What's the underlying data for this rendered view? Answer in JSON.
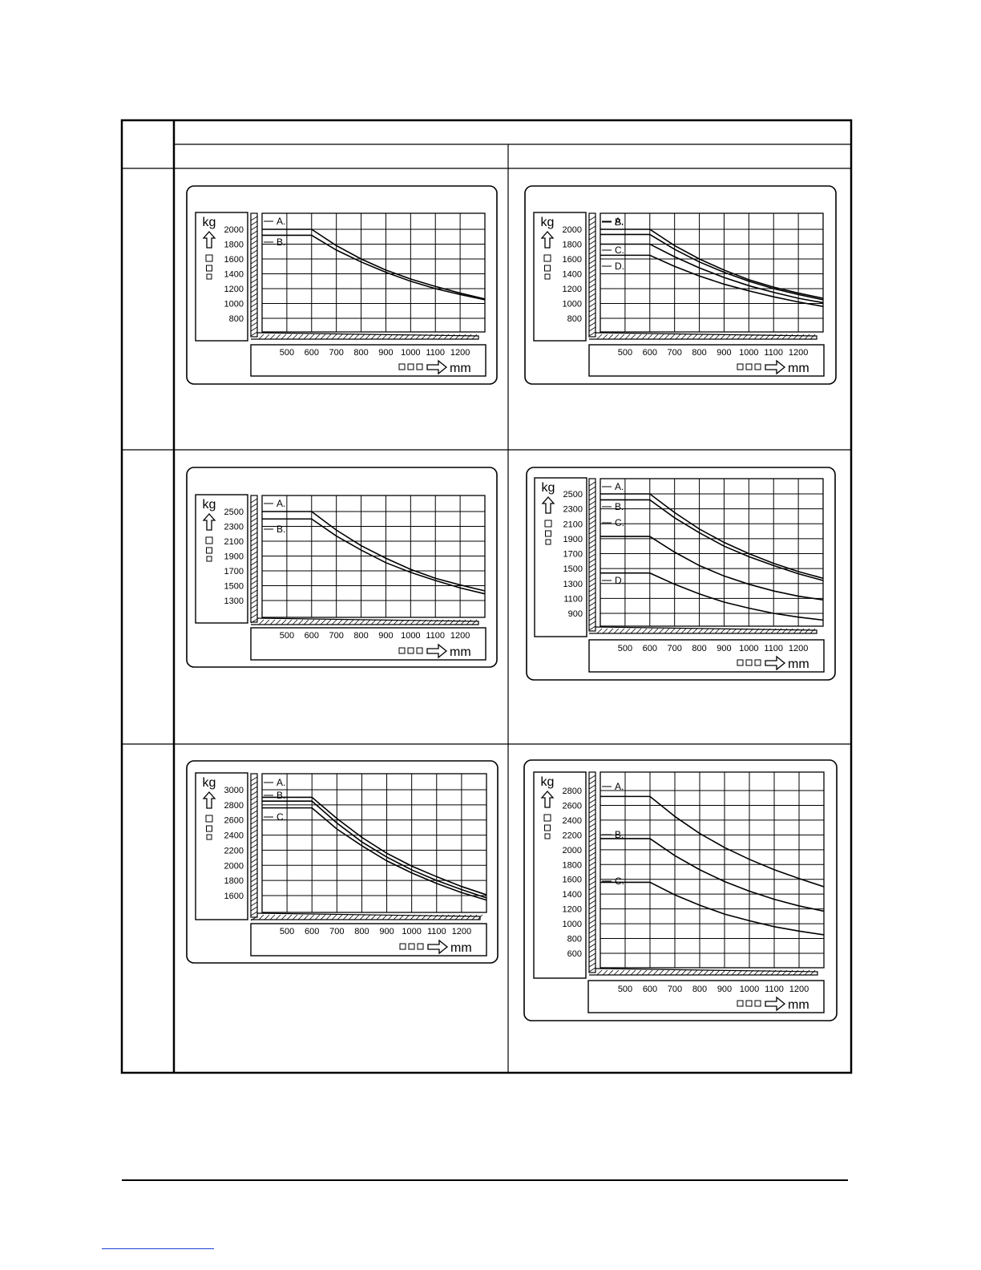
{
  "page": {
    "header_row_1": "",
    "header_left": "",
    "header_right": "",
    "row_labels": [
      "",
      "",
      ""
    ]
  },
  "chart_data": [
    {
      "type": "line",
      "ylabel": "kg",
      "xlabel": "mm",
      "x_ticks": [
        500,
        600,
        700,
        800,
        900,
        1000,
        1100,
        1200
      ],
      "y_ticks": [
        2000,
        1800,
        1600,
        1400,
        1200,
        1000,
        800
      ],
      "xlim": [
        400,
        1300
      ],
      "ylim": [
        650,
        2200
      ],
      "series": [
        {
          "name": "A.",
          "x": [
            400,
            600,
            700,
            800,
            900,
            1000,
            1100,
            1200,
            1300
          ],
          "y": [
            2000,
            2000,
            1780,
            1600,
            1450,
            1330,
            1230,
            1140,
            1060
          ]
        },
        {
          "name": "B.",
          "x": [
            400,
            600,
            700,
            800,
            900,
            1000,
            1100,
            1200,
            1300
          ],
          "y": [
            1920,
            1920,
            1720,
            1560,
            1420,
            1300,
            1200,
            1120,
            1050
          ]
        }
      ]
    },
    {
      "type": "line",
      "ylabel": "kg",
      "xlabel": "mm",
      "x_ticks": [
        500,
        600,
        700,
        800,
        900,
        1000,
        1100,
        1200
      ],
      "y_ticks": [
        2000,
        1800,
        1600,
        1400,
        1200,
        1000,
        800
      ],
      "xlim": [
        400,
        1300
      ],
      "ylim": [
        650,
        2200
      ],
      "series": [
        {
          "name": "A.",
          "x": [
            400,
            600,
            700,
            800,
            900,
            1000,
            1100,
            1200,
            1300
          ],
          "y": [
            2000,
            2000,
            1780,
            1600,
            1450,
            1320,
            1220,
            1140,
            1070
          ]
        },
        {
          "name": "B.",
          "x": [
            400,
            600,
            700,
            800,
            900,
            1000,
            1100,
            1200,
            1300
          ],
          "y": [
            1930,
            1930,
            1730,
            1560,
            1420,
            1300,
            1200,
            1120,
            1050
          ]
        },
        {
          "name": "C.",
          "x": [
            400,
            600,
            700,
            800,
            900,
            1000,
            1100,
            1200,
            1300
          ],
          "y": [
            1800,
            1800,
            1630,
            1480,
            1350,
            1240,
            1150,
            1070,
            1010
          ]
        },
        {
          "name": "D.",
          "x": [
            400,
            600,
            700,
            800,
            900,
            1000,
            1100,
            1200,
            1300
          ],
          "y": [
            1650,
            1650,
            1500,
            1370,
            1260,
            1170,
            1090,
            1020,
            960
          ]
        }
      ]
    },
    {
      "type": "line",
      "ylabel": "kg",
      "xlabel": "mm",
      "x_ticks": [
        500,
        600,
        700,
        800,
        900,
        1000,
        1100,
        1200
      ],
      "y_ticks": [
        2500,
        2300,
        2100,
        1900,
        1700,
        1500,
        1300
      ],
      "xlim": [
        400,
        1300
      ],
      "ylim": [
        1150,
        2700
      ],
      "series": [
        {
          "name": "A.",
          "x": [
            400,
            600,
            700,
            800,
            900,
            1000,
            1100,
            1200,
            1300
          ],
          "y": [
            2500,
            2500,
            2250,
            2040,
            1870,
            1720,
            1600,
            1510,
            1430
          ]
        },
        {
          "name": "B.",
          "x": [
            400,
            600,
            700,
            800,
            900,
            1000,
            1100,
            1200,
            1300
          ],
          "y": [
            2400,
            2400,
            2170,
            1980,
            1810,
            1680,
            1570,
            1470,
            1390
          ]
        }
      ]
    },
    {
      "type": "line",
      "ylabel": "kg",
      "xlabel": "mm",
      "x_ticks": [
        500,
        600,
        700,
        800,
        900,
        1000,
        1100,
        1200
      ],
      "y_ticks": [
        2500,
        2300,
        2100,
        1900,
        1700,
        1500,
        1300,
        1100,
        900
      ],
      "xlim": [
        400,
        1300
      ],
      "ylim": [
        700,
        2700
      ],
      "series": [
        {
          "name": "A.",
          "x": [
            400,
            600,
            700,
            800,
            900,
            1000,
            1100,
            1200,
            1300
          ],
          "y": [
            2500,
            2500,
            2250,
            2030,
            1850,
            1700,
            1570,
            1460,
            1370
          ]
        },
        {
          "name": "B.",
          "x": [
            400,
            600,
            700,
            800,
            900,
            1000,
            1100,
            1200,
            1300
          ],
          "y": [
            2420,
            2420,
            2180,
            1980,
            1800,
            1660,
            1540,
            1430,
            1340
          ]
        },
        {
          "name": "C.",
          "x": [
            400,
            600,
            700,
            800,
            900,
            1000,
            1100,
            1200,
            1300
          ],
          "y": [
            1930,
            1930,
            1720,
            1540,
            1400,
            1290,
            1200,
            1130,
            1080
          ]
        },
        {
          "name": "D.",
          "x": [
            400,
            600,
            700,
            800,
            900,
            1000,
            1100,
            1200,
            1300
          ],
          "y": [
            1440,
            1440,
            1290,
            1160,
            1050,
            970,
            900,
            850,
            810
          ]
        }
      ]
    },
    {
      "type": "line",
      "ylabel": "kg",
      "xlabel": "mm",
      "x_ticks": [
        500,
        600,
        700,
        800,
        900,
        1000,
        1100,
        1200
      ],
      "y_ticks": [
        3000,
        2800,
        2600,
        2400,
        2200,
        2000,
        1800,
        1600
      ],
      "xlim": [
        400,
        1300
      ],
      "ylim": [
        1400,
        3200
      ],
      "series": [
        {
          "name": "A.",
          "x": [
            400,
            600,
            700,
            800,
            900,
            1000,
            1100,
            1200,
            1300
          ],
          "y": [
            2900,
            2900,
            2620,
            2370,
            2160,
            1990,
            1850,
            1720,
            1610
          ]
        },
        {
          "name": "B.",
          "x": [
            400,
            600,
            700,
            800,
            900,
            1000,
            1100,
            1200,
            1300
          ],
          "y": [
            2850,
            2850,
            2560,
            2310,
            2110,
            1940,
            1800,
            1680,
            1570
          ]
        },
        {
          "name": "C.",
          "x": [
            400,
            600,
            700,
            800,
            900,
            1000,
            1100,
            1200,
            1300
          ],
          "y": [
            2760,
            2760,
            2480,
            2260,
            2060,
            1900,
            1760,
            1640,
            1540
          ]
        }
      ]
    },
    {
      "type": "line",
      "ylabel": "kg",
      "xlabel": "mm",
      "x_ticks": [
        500,
        600,
        700,
        800,
        900,
        1000,
        1100,
        1200
      ],
      "y_ticks": [
        2800,
        2600,
        2400,
        2200,
        2000,
        1800,
        1600,
        1400,
        1200,
        1000,
        800,
        600
      ],
      "xlim": [
        400,
        1300
      ],
      "ylim": [
        400,
        3000
      ],
      "series": [
        {
          "name": "A.",
          "x": [
            400,
            600,
            700,
            800,
            900,
            1000,
            1100,
            1200,
            1300
          ],
          "y": [
            2720,
            2720,
            2450,
            2220,
            2030,
            1870,
            1730,
            1610,
            1500
          ]
        },
        {
          "name": "B.",
          "x": [
            400,
            600,
            700,
            800,
            900,
            1000,
            1100,
            1200,
            1300
          ],
          "y": [
            2150,
            2150,
            1920,
            1730,
            1570,
            1440,
            1330,
            1240,
            1170
          ]
        },
        {
          "name": "C.",
          "x": [
            400,
            600,
            700,
            800,
            900,
            1000,
            1100,
            1200,
            1300
          ],
          "y": [
            1560,
            1560,
            1390,
            1250,
            1130,
            1040,
            960,
            900,
            850
          ]
        }
      ]
    }
  ]
}
